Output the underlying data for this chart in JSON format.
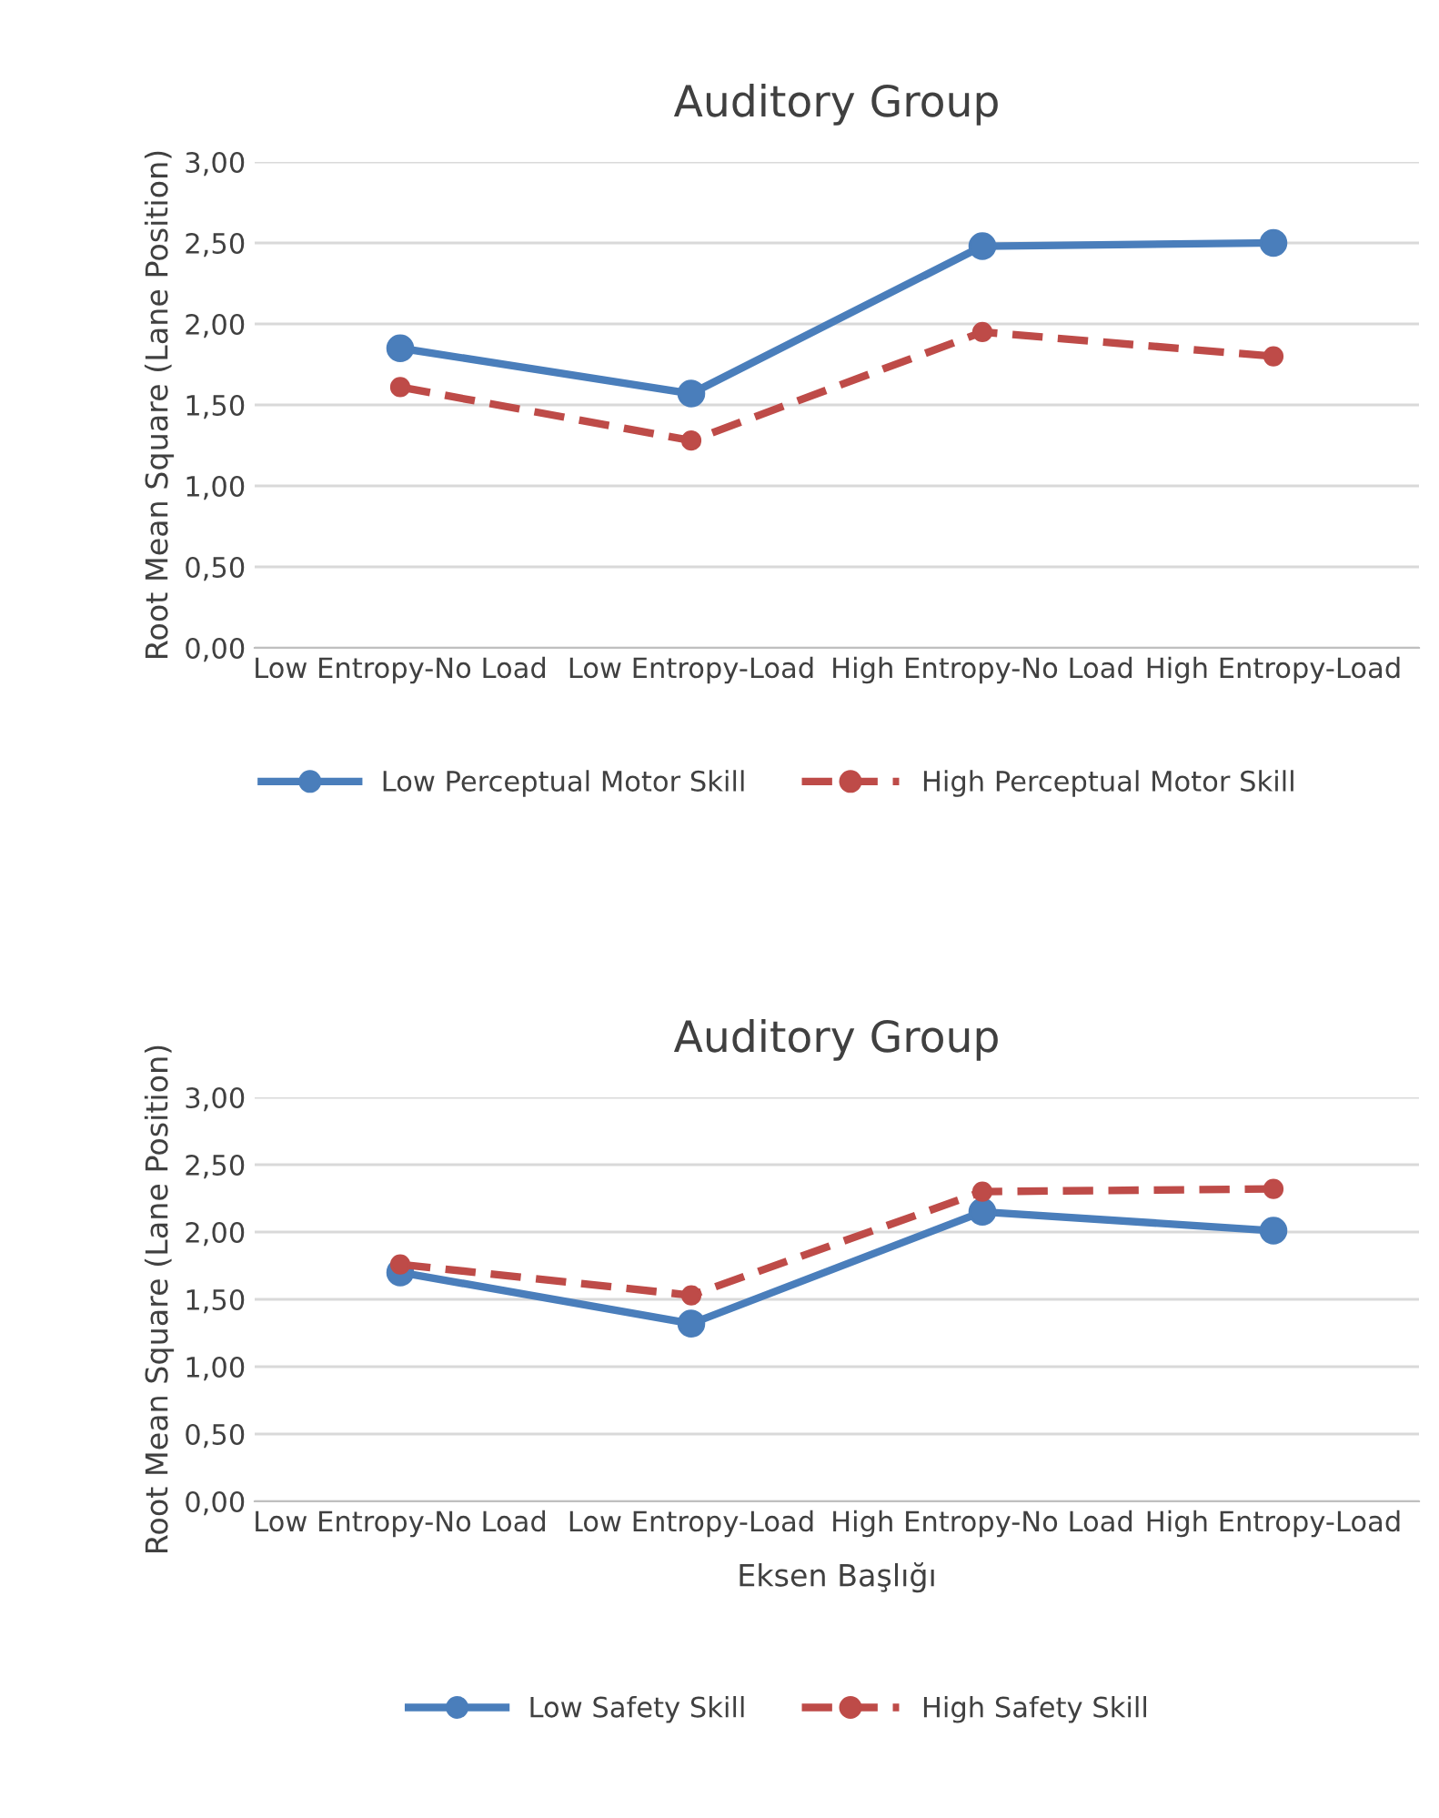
{
  "chart_data": [
    {
      "type": "line",
      "title": "Auditory Group",
      "ylabel": "Root Mean Square (Lane Position)",
      "categories": [
        "Low Entropy-No Load",
        "Low Entropy-Load",
        "High Entropy-No Load",
        "High Entropy-Load"
      ],
      "series": [
        {
          "name": "Low Perceptual Motor Skill",
          "color": "#4a7ebb",
          "values": [
            1.85,
            1.57,
            2.48,
            2.5
          ],
          "line_style": "solid"
        },
        {
          "name": "High Perceptual Motor Skill",
          "color": "#be4b48",
          "values": [
            1.61,
            1.28,
            1.95,
            1.8
          ],
          "line_style": "dashed"
        }
      ],
      "ylim": [
        0,
        3
      ],
      "yticks": [
        {
          "value": 0,
          "label": "0,00"
        },
        {
          "value": 0.5,
          "label": "0,50"
        },
        {
          "value": 1,
          "label": "1,00"
        },
        {
          "value": 1.5,
          "label": "1,50"
        },
        {
          "value": 2,
          "label": "2,00"
        },
        {
          "value": 2.5,
          "label": "2,50"
        },
        {
          "value": 3,
          "label": "3,00"
        }
      ],
      "grid": "y",
      "legend": "bottom",
      "marker": "circle"
    },
    {
      "type": "line",
      "title": "Auditory Group",
      "ylabel": "Root Mean Square (Lane Position)",
      "xlabel": "Eksen Başlığı",
      "categories": [
        "Low Entropy-No Load",
        "Low Entropy-Load",
        "High Entropy-No Load",
        "High Entropy-Load"
      ],
      "series": [
        {
          "name": "Low Safety Skill",
          "color": "#4a7ebb",
          "values": [
            1.7,
            1.32,
            2.15,
            2.01
          ],
          "line_style": "solid"
        },
        {
          "name": "High Safety Skill",
          "color": "#be4b48",
          "values": [
            1.76,
            1.53,
            2.3,
            2.32
          ],
          "line_style": "dashed"
        }
      ],
      "ylim": [
        0,
        3
      ],
      "yticks": [
        {
          "value": 0,
          "label": "0,00"
        },
        {
          "value": 0.5,
          "label": "0,50"
        },
        {
          "value": 1,
          "label": "1,00"
        },
        {
          "value": 1.5,
          "label": "1,50"
        },
        {
          "value": 2,
          "label": "2,00"
        },
        {
          "value": 2.5,
          "label": "2,50"
        },
        {
          "value": 3,
          "label": "3,00"
        }
      ],
      "grid": "y",
      "legend": "bottom",
      "marker": "circle"
    }
  ]
}
